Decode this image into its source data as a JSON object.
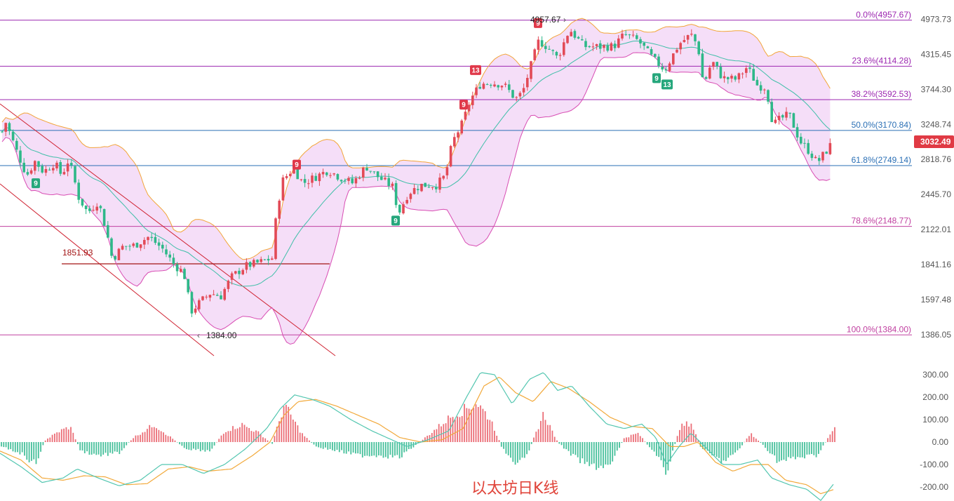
{
  "chart_data": [
    {
      "type": "candlestick",
      "ylim": [
        1300,
        5050
      ],
      "y_ticks": [
        "4973.73",
        "4315.45",
        "3744.30",
        "3248.74",
        "2818.76",
        "2445.70",
        "2122.01",
        "1841.16",
        "1597.48",
        "1386.05"
      ],
      "y_tick_values": [
        4973.73,
        4315.45,
        3744.3,
        3248.74,
        2818.76,
        2445.7,
        2122.01,
        1841.16,
        1597.48,
        1386.05
      ],
      "current_price": "3032.49",
      "current_price_value": 3032.49,
      "fib_levels": [
        {
          "label": "0.0%(4957.67)",
          "value": 4957.67,
          "color": "#9c27b0"
        },
        {
          "label": "23.6%(4114.28)",
          "value": 4114.28,
          "color": "#9c27b0"
        },
        {
          "label": "38.2%(3592.53)",
          "value": 3592.53,
          "color": "#9c27b0"
        },
        {
          "label": "50.0%(3170.84)",
          "value": 3170.84,
          "color": "#2a6fb5"
        },
        {
          "label": "61.8%(2749.14)",
          "value": 2749.14,
          "color": "#2a6fb5"
        },
        {
          "label": "78.6%(2148.77)",
          "value": 2148.77,
          "color": "#c040a0"
        },
        {
          "label": "100.0%(1384.00)",
          "value": 1384.0,
          "color": "#c040a0"
        }
      ],
      "annotations": [
        {
          "label": "4957.67",
          "value": 4957.67
        },
        {
          "label": "1851.93",
          "value": 1851.93
        },
        {
          "label": "1384.00",
          "value": 1384.0
        }
      ],
      "td_markers": [
        {
          "label": "9",
          "kind": "buy"
        },
        {
          "label": "9",
          "kind": "sell"
        },
        {
          "label": "9",
          "kind": "buy"
        },
        {
          "label": "9",
          "kind": "sell"
        },
        {
          "label": "13",
          "kind": "sell"
        },
        {
          "label": "9",
          "kind": "sell"
        },
        {
          "label": "9",
          "kind": "buy"
        },
        {
          "label": "13",
          "kind": "buy"
        }
      ],
      "anchors": [
        [
          0,
          3080
        ],
        [
          8,
          3280
        ],
        [
          22,
          2950
        ],
        [
          38,
          2640
        ],
        [
          50,
          2800
        ],
        [
          62,
          2680
        ],
        [
          78,
          2780
        ],
        [
          88,
          2640
        ],
        [
          98,
          2820
        ],
        [
          112,
          2420
        ],
        [
          125,
          2270
        ],
        [
          140,
          2380
        ],
        [
          152,
          2100
        ],
        [
          160,
          1880
        ],
        [
          175,
          1980
        ],
        [
          192,
          1990
        ],
        [
          212,
          2060
        ],
        [
          232,
          1960
        ],
        [
          248,
          1840
        ],
        [
          262,
          1780
        ],
        [
          272,
          1520
        ],
        [
          285,
          1580
        ],
        [
          300,
          1640
        ],
        [
          315,
          1620
        ],
        [
          330,
          1750
        ],
        [
          350,
          1830
        ],
        [
          372,
          1860
        ],
        [
          388,
          1890
        ],
        [
          394,
          2250
        ],
        [
          402,
          2580
        ],
        [
          418,
          2720
        ],
        [
          432,
          2560
        ],
        [
          448,
          2620
        ],
        [
          468,
          2700
        ],
        [
          485,
          2620
        ],
        [
          503,
          2560
        ],
        [
          522,
          2740
        ],
        [
          540,
          2620
        ],
        [
          560,
          2520
        ],
        [
          568,
          2260
        ],
        [
          582,
          2460
        ],
        [
          600,
          2540
        ],
        [
          622,
          2540
        ],
        [
          635,
          2640
        ],
        [
          645,
          3020
        ],
        [
          660,
          3280
        ],
        [
          670,
          3580
        ],
        [
          685,
          3830
        ],
        [
          700,
          3850
        ],
        [
          718,
          3820
        ],
        [
          735,
          3600
        ],
        [
          745,
          3700
        ],
        [
          755,
          4050
        ],
        [
          768,
          4560
        ],
        [
          780,
          4450
        ],
        [
          795,
          4250
        ],
        [
          812,
          4780
        ],
        [
          832,
          4460
        ],
        [
          855,
          4450
        ],
        [
          875,
          4460
        ],
        [
          890,
          4680
        ],
        [
          910,
          4560
        ],
        [
          930,
          4250
        ],
        [
          948,
          4050
        ],
        [
          968,
          4500
        ],
        [
          985,
          4680
        ],
        [
          995,
          4460
        ],
        [
          1003,
          3800
        ],
        [
          1015,
          4200
        ],
        [
          1030,
          3920
        ],
        [
          1050,
          3900
        ],
        [
          1065,
          4100
        ],
        [
          1080,
          3800
        ],
        [
          1092,
          3780
        ],
        [
          1102,
          3240
        ],
        [
          1112,
          3320
        ],
        [
          1125,
          3380
        ],
        [
          1140,
          3040
        ],
        [
          1155,
          2900
        ],
        [
          1165,
          2780
        ],
        [
          1180,
          2940
        ],
        [
          1188,
          3032
        ]
      ]
    },
    {
      "type": "macd",
      "ylim": [
        -260,
        340
      ],
      "y_ticks": [
        "300.00",
        "200.00",
        "100.00",
        "0.00",
        "-100.00",
        "-200.00"
      ],
      "y_tick_values": [
        300,
        200,
        100,
        0,
        -100,
        -200
      ],
      "dif_anchors": [
        [
          0,
          -50
        ],
        [
          30,
          -110
        ],
        [
          60,
          -180
        ],
        [
          90,
          -160
        ],
        [
          110,
          -120
        ],
        [
          140,
          -160
        ],
        [
          170,
          -195
        ],
        [
          200,
          -170
        ],
        [
          230,
          -100
        ],
        [
          260,
          -100
        ],
        [
          290,
          -140
        ],
        [
          320,
          -100
        ],
        [
          350,
          -30
        ],
        [
          380,
          60
        ],
        [
          400,
          150
        ],
        [
          420,
          210
        ],
        [
          445,
          190
        ],
        [
          470,
          160
        ],
        [
          500,
          100
        ],
        [
          530,
          50
        ],
        [
          555,
          15
        ],
        [
          580,
          -20
        ],
        [
          610,
          10
        ],
        [
          640,
          50
        ],
        [
          665,
          200
        ],
        [
          685,
          310
        ],
        [
          705,
          300
        ],
        [
          730,
          170
        ],
        [
          755,
          280
        ],
        [
          775,
          310
        ],
        [
          795,
          230
        ],
        [
          815,
          250
        ],
        [
          840,
          160
        ],
        [
          865,
          80
        ],
        [
          890,
          60
        ],
        [
          915,
          80
        ],
        [
          935,
          20
        ],
        [
          950,
          -100
        ],
        [
          968,
          -20
        ],
        [
          985,
          40
        ],
        [
          1005,
          -20
        ],
        [
          1030,
          -100
        ],
        [
          1055,
          -100
        ],
        [
          1080,
          -80
        ],
        [
          1100,
          -160
        ],
        [
          1125,
          -190
        ],
        [
          1150,
          -210
        ],
        [
          1170,
          -260
        ],
        [
          1190,
          -180
        ]
      ],
      "dea_anchors": [
        [
          0,
          -40
        ],
        [
          30,
          -80
        ],
        [
          60,
          -160
        ],
        [
          90,
          -170
        ],
        [
          120,
          -150
        ],
        [
          150,
          -155
        ],
        [
          180,
          -190
        ],
        [
          210,
          -185
        ],
        [
          240,
          -120
        ],
        [
          270,
          -110
        ],
        [
          295,
          -130
        ],
        [
          330,
          -120
        ],
        [
          360,
          -60
        ],
        [
          385,
          0
        ],
        [
          405,
          120
        ],
        [
          425,
          180
        ],
        [
          450,
          190
        ],
        [
          480,
          160
        ],
        [
          510,
          120
        ],
        [
          540,
          80
        ],
        [
          570,
          20
        ],
        [
          600,
          0
        ],
        [
          630,
          10
        ],
        [
          660,
          60
        ],
        [
          690,
          250
        ],
        [
          712,
          290
        ],
        [
          735,
          220
        ],
        [
          760,
          180
        ],
        [
          785,
          270
        ],
        [
          810,
          240
        ],
        [
          840,
          180
        ],
        [
          870,
          110
        ],
        [
          900,
          70
        ],
        [
          930,
          60
        ],
        [
          955,
          -20
        ],
        [
          975,
          -20
        ],
        [
          995,
          0
        ],
        [
          1020,
          -90
        ],
        [
          1045,
          -130
        ],
        [
          1070,
          -100
        ],
        [
          1095,
          -100
        ],
        [
          1120,
          -170
        ],
        [
          1150,
          -190
        ],
        [
          1170,
          -230
        ],
        [
          1190,
          -210
        ]
      ],
      "hist_anchors": [
        [
          0,
          -20
        ],
        [
          30,
          -50
        ],
        [
          50,
          -100
        ],
        [
          65,
          10
        ],
        [
          85,
          50
        ],
        [
          100,
          70
        ],
        [
          115,
          -40
        ],
        [
          140,
          -60
        ],
        [
          170,
          -50
        ],
        [
          190,
          20
        ],
        [
          220,
          80
        ],
        [
          240,
          30
        ],
        [
          265,
          -30
        ],
        [
          300,
          -40
        ],
        [
          320,
          50
        ],
        [
          345,
          80
        ],
        [
          370,
          40
        ],
        [
          388,
          -10
        ],
        [
          405,
          170
        ],
        [
          430,
          40
        ],
        [
          450,
          -20
        ],
        [
          480,
          -40
        ],
        [
          510,
          -60
        ],
        [
          540,
          -60
        ],
        [
          570,
          -70
        ],
        [
          590,
          -20
        ],
        [
          610,
          30
        ],
        [
          640,
          110
        ],
        [
          680,
          180
        ],
        [
          700,
          100
        ],
        [
          715,
          -20
        ],
        [
          735,
          -120
        ],
        [
          755,
          -30
        ],
        [
          775,
          130
        ],
        [
          795,
          0
        ],
        [
          815,
          -60
        ],
        [
          840,
          -110
        ],
        [
          870,
          -110
        ],
        [
          890,
          20
        ],
        [
          910,
          40
        ],
        [
          935,
          -60
        ],
        [
          950,
          -140
        ],
        [
          970,
          70
        ],
        [
          985,
          90
        ],
        [
          1000,
          -30
        ],
        [
          1030,
          -90
        ],
        [
          1050,
          -50
        ],
        [
          1070,
          40
        ],
        [
          1090,
          -20
        ],
        [
          1110,
          -90
        ],
        [
          1140,
          -70
        ],
        [
          1165,
          -60
        ],
        [
          1175,
          -10
        ],
        [
          1190,
          70
        ]
      ]
    }
  ],
  "watermark": "以太坊日K线",
  "colors": {
    "up": "#e24a57",
    "down": "#2eb889",
    "band_fill": "#e9b6f0",
    "band_upper": "#f2a53a",
    "band_lower": "#d84db3",
    "band_mid": "#3fbfa8",
    "dif": "#53c6b0",
    "dea": "#f2a93b",
    "trend": "#cf2231",
    "support": "#a31515"
  }
}
